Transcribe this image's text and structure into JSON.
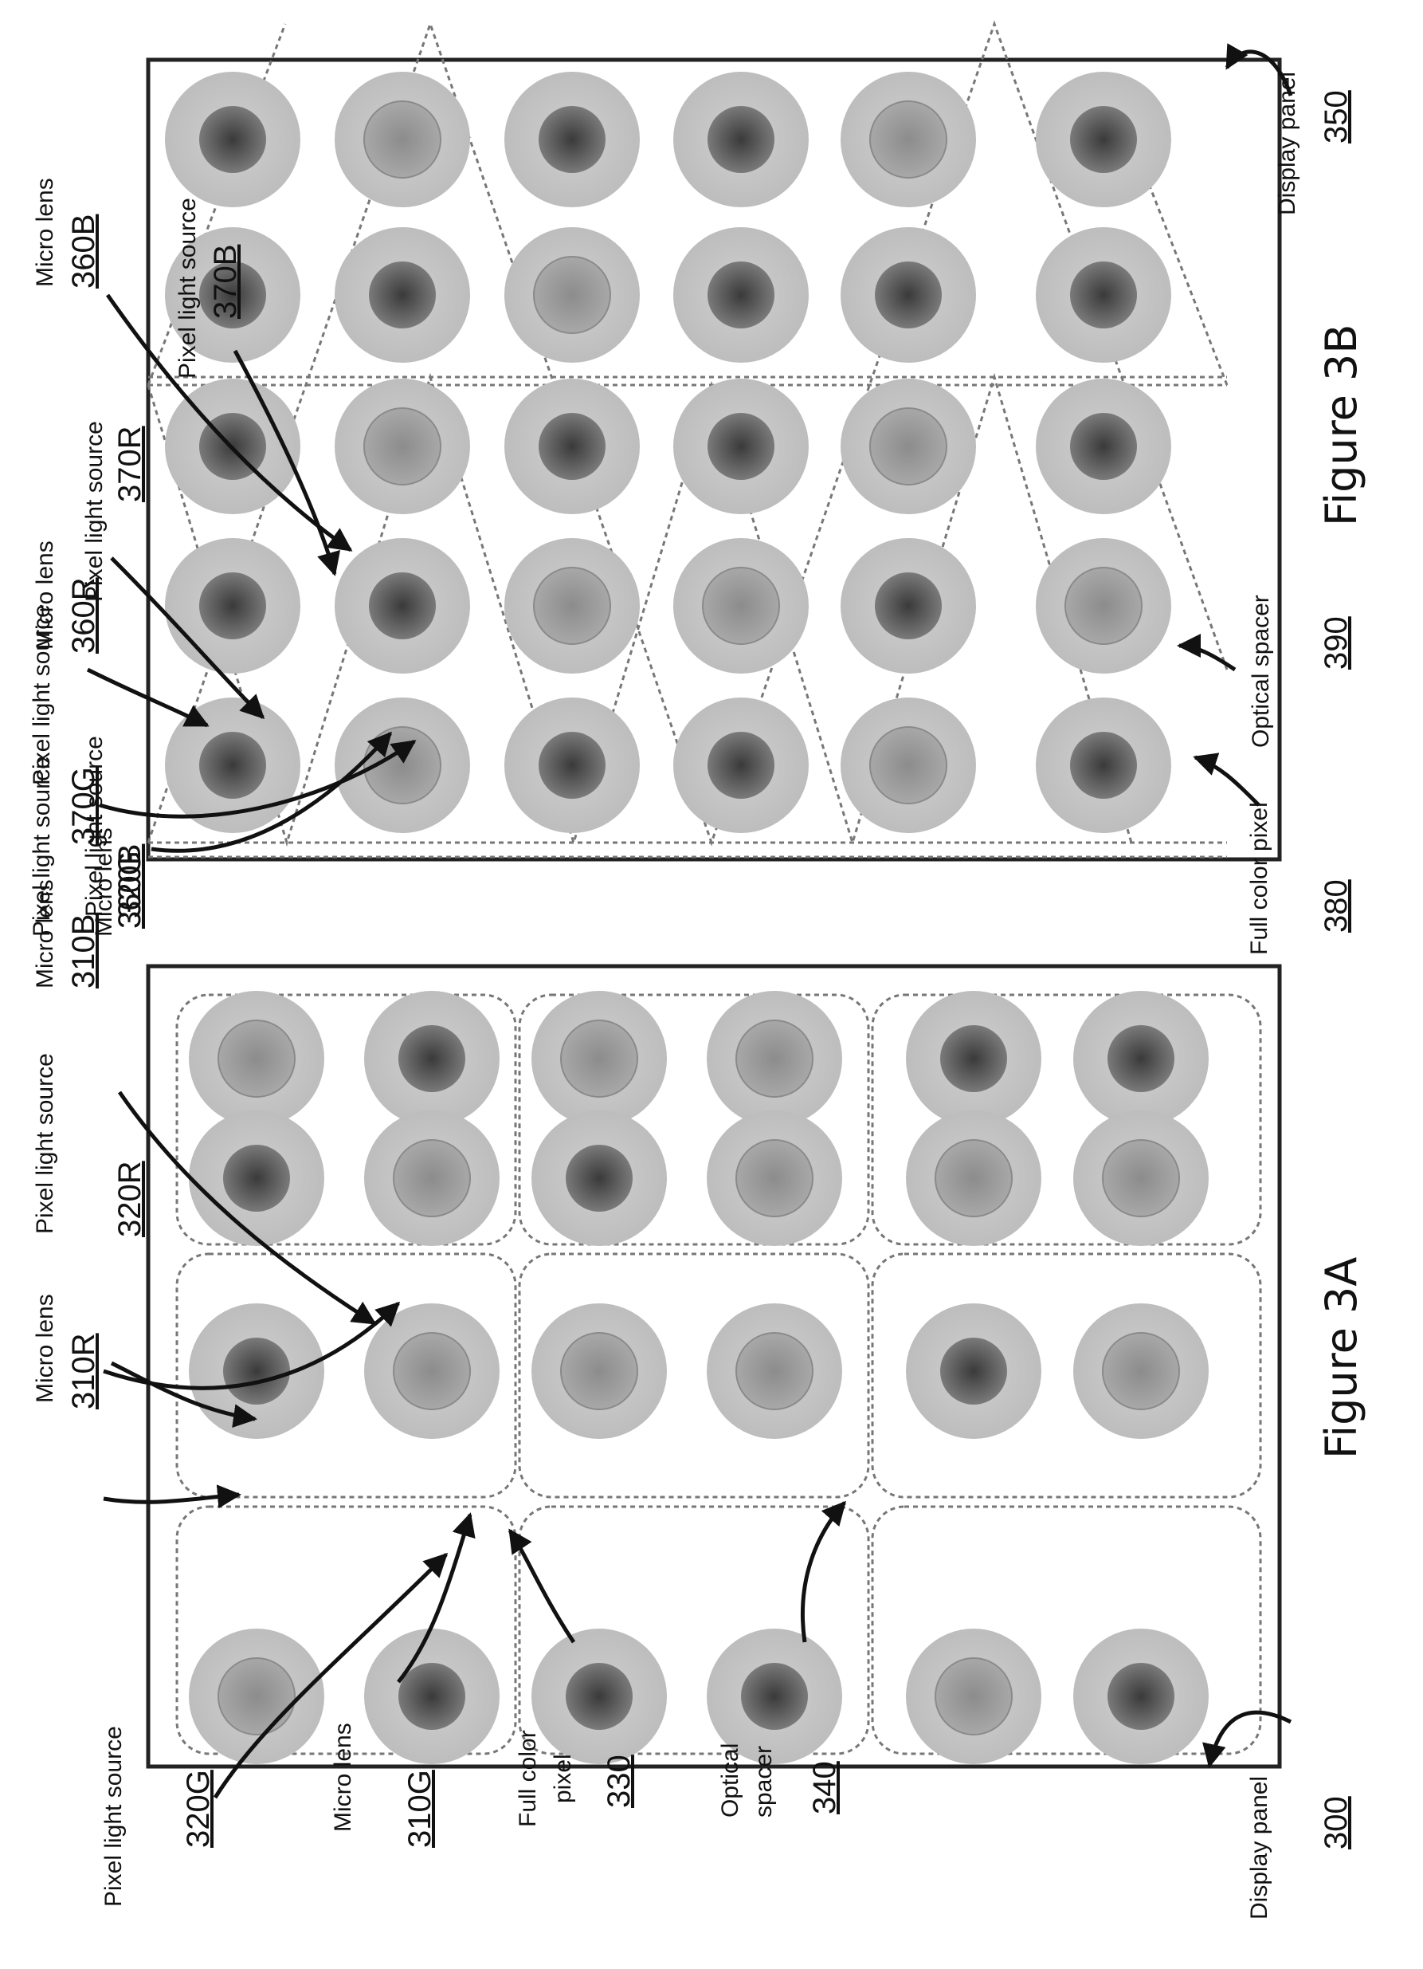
{
  "labels": {
    "figure_3a": "Figure 3A",
    "figure_3b": "Figure 3B",
    "micro_lens": "Micro lens",
    "pixel_light_source": "Pixel light source",
    "display_panel": "Display panel",
    "full_color": "Full color",
    "pixel": "pixel",
    "full_color_pixel": "Full color pixel",
    "optical": "Optical",
    "spacer": "spacer",
    "optical_spacer": "Optical spacer"
  },
  "refs": {
    "r300": "300",
    "r310R": "310R",
    "r310G": "310G",
    "r310B": "310B",
    "r320R": "320R",
    "r320G": "320G",
    "r320B": "320B",
    "r330": "330",
    "r340": "340",
    "r350": "350",
    "r360R": "360R",
    "r360G": "360G",
    "r360B": "360B",
    "r370R": "370R",
    "r370G": "370G",
    "r370B": "370B",
    "r380": "380",
    "r390": "390"
  },
  "colors": {
    "lens": "#c4c4c4",
    "core_dark": "#4d4d4d",
    "core_light": "#9a9a9a",
    "frame": "#222222"
  },
  "fig3a_cores": [
    [
      "light",
      "dark",
      "dark",
      "light"
    ],
    [
      "dark",
      "light",
      "light",
      "dark"
    ],
    [
      "light",
      "dark",
      "light",
      "dark"
    ],
    [
      "light",
      "light",
      "light",
      "dark"
    ],
    [
      "dark",
      "light",
      "dark",
      "light"
    ],
    [
      "dark",
      "light",
      "light",
      "dark"
    ]
  ],
  "fig3b_cores": [
    [
      "dark",
      "light",
      "dark",
      "dark",
      "light",
      "dark"
    ],
    [
      "dark",
      "dark",
      "light",
      "light",
      "dark",
      "light"
    ],
    [
      "dark",
      "light",
      "dark",
      "dark",
      "light",
      "dark"
    ],
    [
      "dark",
      "dark",
      "light",
      "dark",
      "dark",
      "dark"
    ],
    [
      "dark",
      "light",
      "dark",
      "dark",
      "light",
      "dark"
    ]
  ]
}
